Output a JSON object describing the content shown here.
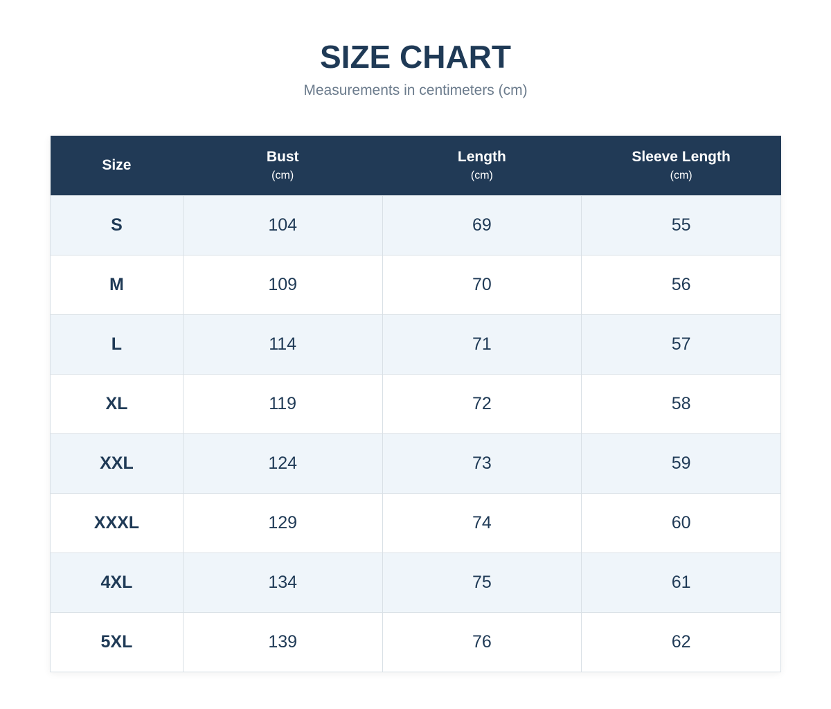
{
  "header": {
    "title": "SIZE CHART",
    "subtitle": "Measurements in centimeters (cm)"
  },
  "table": {
    "columns": [
      {
        "name": "Size"
      },
      {
        "name": "Bust",
        "unit": "(cm)"
      },
      {
        "name": "Length",
        "unit": "(cm)"
      },
      {
        "name": "Sleeve Length",
        "unit": "(cm)"
      }
    ],
    "rows": [
      [
        "S",
        104,
        69,
        55
      ],
      [
        "M",
        109,
        70,
        56
      ],
      [
        "L",
        114,
        71,
        57
      ],
      [
        "XL",
        119,
        72,
        58
      ],
      [
        "XXL",
        124,
        73,
        59
      ],
      [
        "XXXL",
        129,
        74,
        60
      ],
      [
        "4XL",
        134,
        75,
        61
      ],
      [
        "5XL",
        139,
        76,
        62
      ]
    ]
  }
}
